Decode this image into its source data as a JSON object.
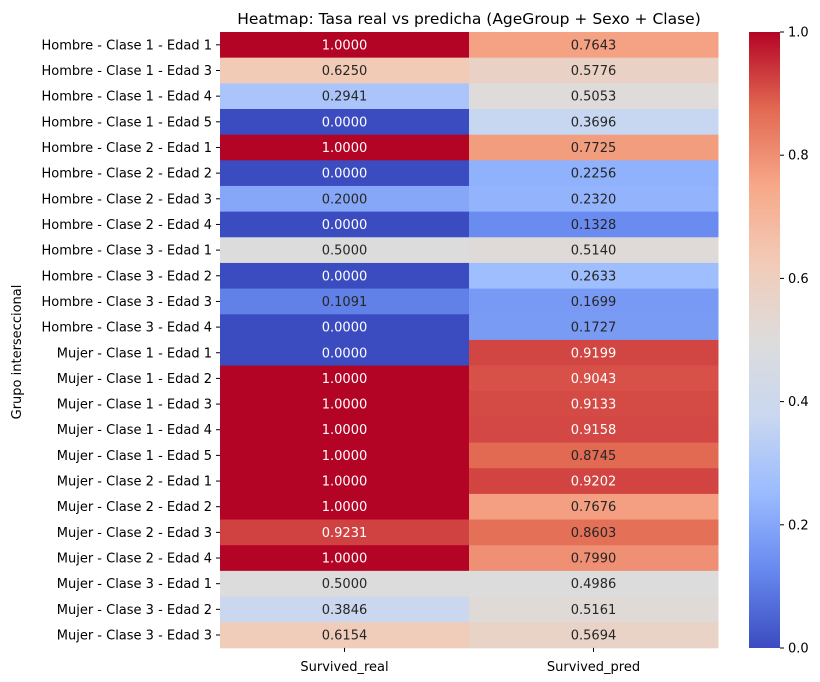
{
  "chart_data": {
    "type": "heatmap",
    "title": "Heatmap: Tasa real vs predicha (AgeGroup + Sexo + Clase)",
    "xlabel": "",
    "ylabel": "Grupo interseccional",
    "columns": [
      "Survived_real",
      "Survived_pred"
    ],
    "rows": [
      "Hombre - Clase 1 - Edad 1",
      "Hombre - Clase 1 - Edad 3",
      "Hombre - Clase 1 - Edad 4",
      "Hombre - Clase 1 - Edad 5",
      "Hombre - Clase 2 - Edad 1",
      "Hombre - Clase 2 - Edad 2",
      "Hombre - Clase 2 - Edad 3",
      "Hombre - Clase 2 - Edad 4",
      "Hombre - Clase 3 - Edad 1",
      "Hombre - Clase 3 - Edad 2",
      "Hombre - Clase 3 - Edad 3",
      "Hombre - Clase 3 - Edad 4",
      "Mujer - Clase 1 - Edad 1",
      "Mujer - Clase 1 - Edad 2",
      "Mujer - Clase 1 - Edad 3",
      "Mujer - Clase 1 - Edad 4",
      "Mujer - Clase 1 - Edad 5",
      "Mujer - Clase 2 - Edad 1",
      "Mujer - Clase 2 - Edad 2",
      "Mujer - Clase 2 - Edad 3",
      "Mujer - Clase 2 - Edad 4",
      "Mujer - Clase 3 - Edad 1",
      "Mujer - Clase 3 - Edad 2",
      "Mujer - Clase 3 - Edad 3"
    ],
    "values": [
      [
        1.0,
        0.7643
      ],
      [
        0.625,
        0.5776
      ],
      [
        0.2941,
        0.5053
      ],
      [
        0.0,
        0.3696
      ],
      [
        1.0,
        0.7725
      ],
      [
        0.0,
        0.2256
      ],
      [
        0.2,
        0.232
      ],
      [
        0.0,
        0.1328
      ],
      [
        0.5,
        0.514
      ],
      [
        0.0,
        0.2633
      ],
      [
        0.1091,
        0.1699
      ],
      [
        0.0,
        0.1727
      ],
      [
        0.0,
        0.9199
      ],
      [
        1.0,
        0.9043
      ],
      [
        1.0,
        0.9133
      ],
      [
        1.0,
        0.9158
      ],
      [
        1.0,
        0.8745
      ],
      [
        1.0,
        0.9202
      ],
      [
        1.0,
        0.7676
      ],
      [
        0.9231,
        0.8603
      ],
      [
        1.0,
        0.799
      ],
      [
        0.5,
        0.4986
      ],
      [
        0.3846,
        0.5161
      ],
      [
        0.6154,
        0.5694
      ]
    ],
    "annotation_format": "4 decimals",
    "colormap": "coolwarm",
    "colormap_stops": [
      "#3b4cc0",
      "#6788ee",
      "#9abbff",
      "#c9d7f0",
      "#dddcdc",
      "#f2cbb7",
      "#f7a889",
      "#e26952",
      "#b40426"
    ],
    "vmin": 0,
    "vmax": 1,
    "colorbar_ticks": [
      0.0,
      0.2,
      0.4,
      0.6,
      0.8,
      1.0
    ],
    "grid": false
  }
}
